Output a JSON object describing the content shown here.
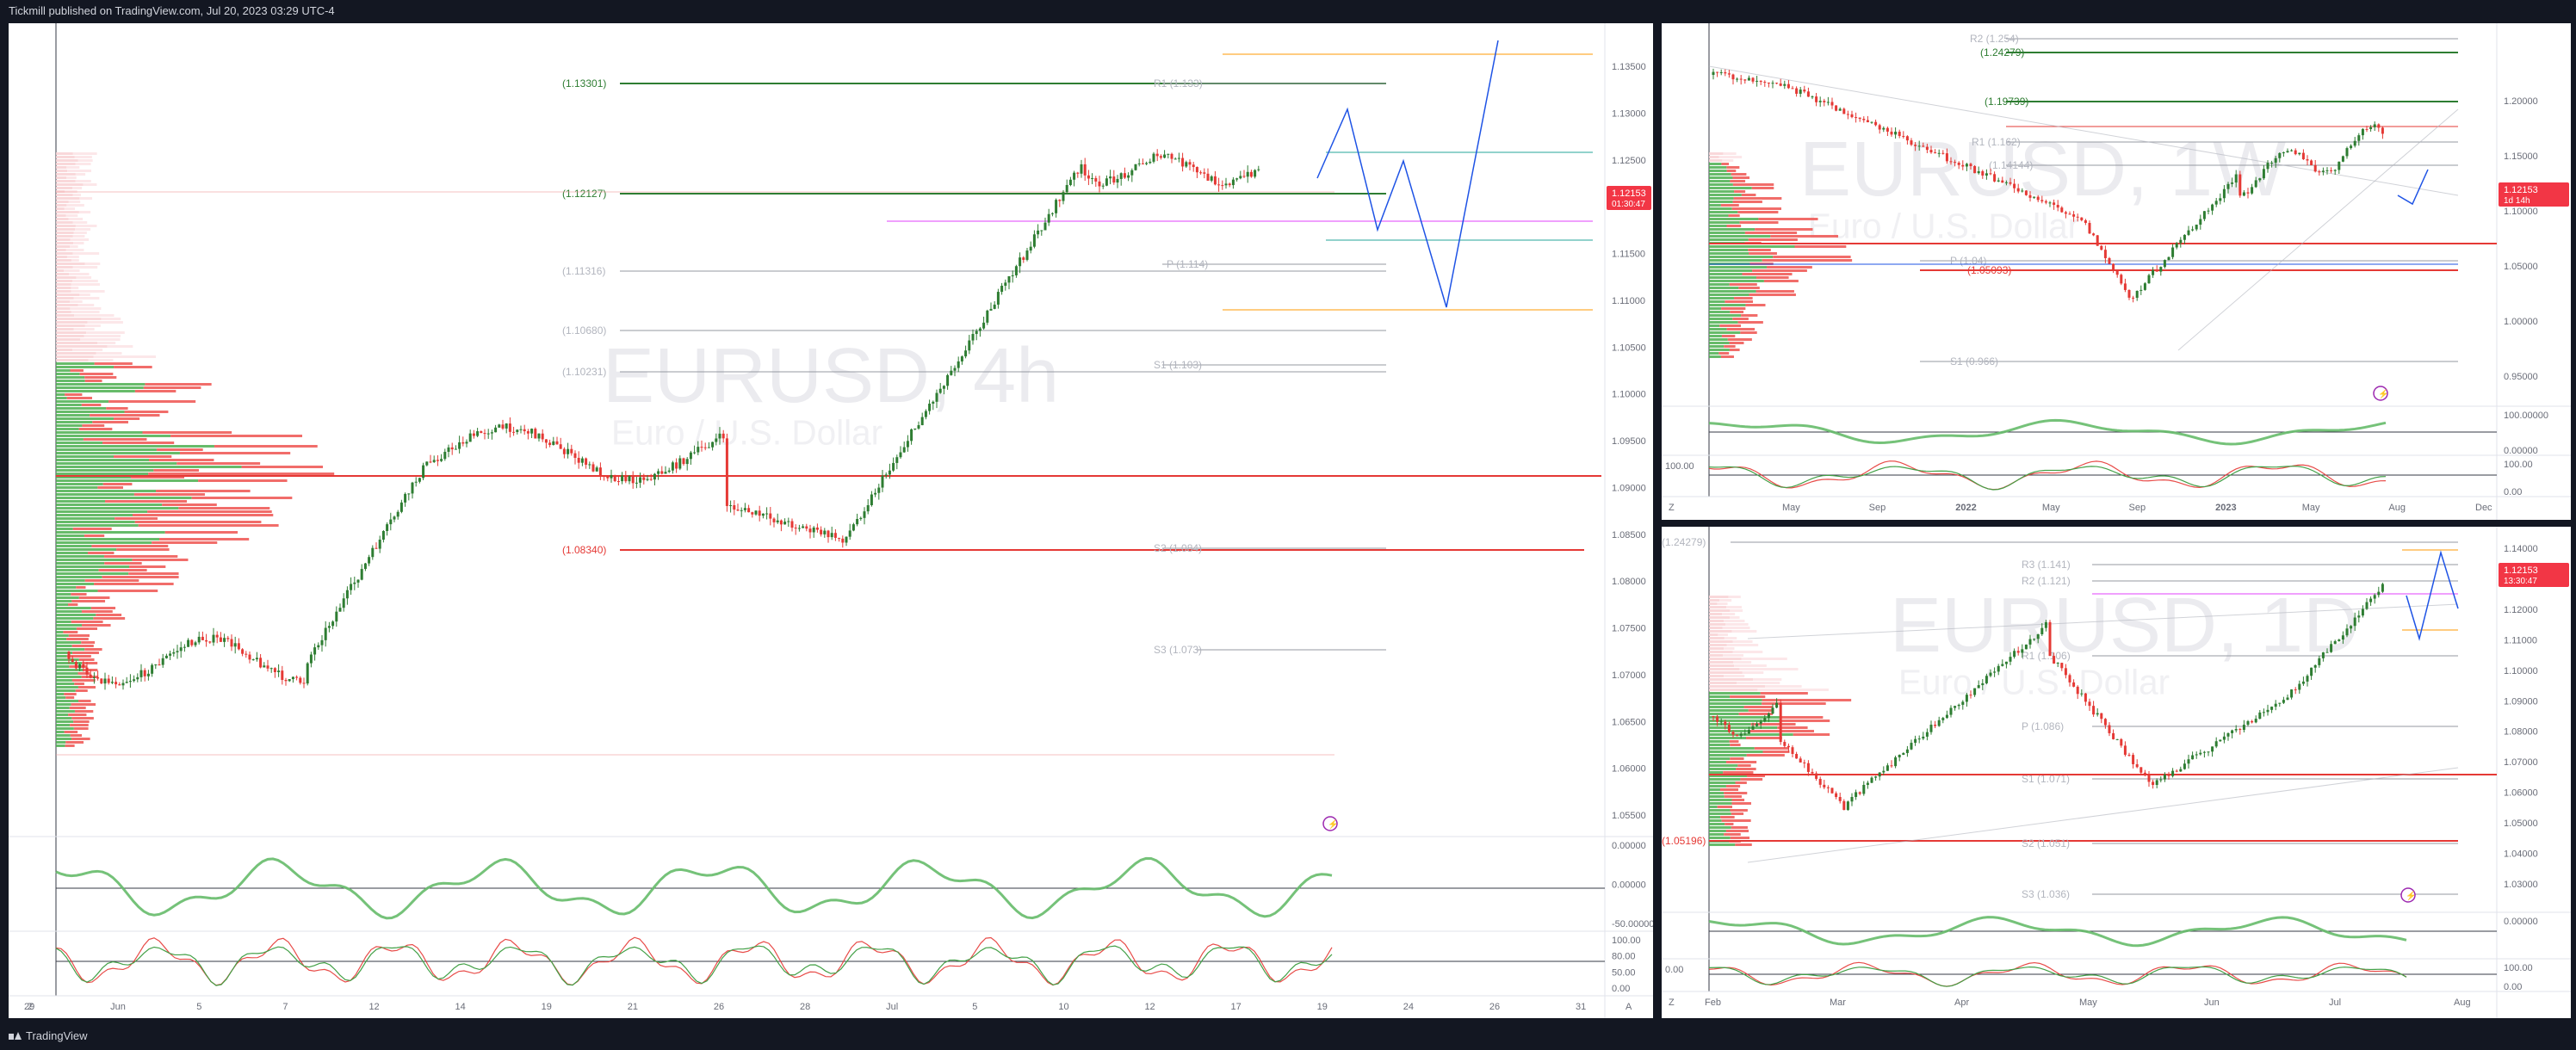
{
  "header": {
    "publisher_line": "Tickmill published on TradingView.com, Jul 20, 2023 03:29 UTC-4"
  },
  "footer": {
    "brand": "TradingView"
  },
  "colors": {
    "up": "#089981",
    "down": "#f23645",
    "bg": "#ffffff",
    "frame": "#131722",
    "level_green": "#2e7d32",
    "level_red": "#e53935",
    "projection": "#1e53e5",
    "orange": "#ff9800",
    "magenta": "#e040fb"
  },
  "panels": {
    "left": {
      "symbol": "EURUSD, 4h",
      "subtitle": "Euro / U.S. Dollar",
      "price_axis": [
        "1.13500",
        "1.13000",
        "1.12500",
        "1.12000",
        "1.11500",
        "1.11000",
        "1.10500",
        "1.10000",
        "1.09500",
        "1.09000",
        "1.08500",
        "1.08000",
        "1.07500",
        "1.07000",
        "1.06500",
        "1.06000",
        "1.05500"
      ],
      "last_price": "1.12153",
      "countdown": "01:30:47",
      "levels": [
        {
          "label": "(1.13301)",
          "kind": "green"
        },
        {
          "label": "R1 (1.133)",
          "kind": "gray"
        },
        {
          "label": "(1.12127)",
          "kind": "green"
        },
        {
          "label": "(1.11316)",
          "kind": "gray"
        },
        {
          "label": "P (1.114)",
          "kind": "gray"
        },
        {
          "label": "(1.10680)",
          "kind": "gray"
        },
        {
          "label": "(1.10231)",
          "kind": "gray"
        },
        {
          "label": "S1 (1.103)",
          "kind": "gray"
        },
        {
          "label": "(1.08340)",
          "kind": "red"
        },
        {
          "label": "S2 (1.084)",
          "kind": "gray"
        },
        {
          "label": "S3 (1.073)",
          "kind": "gray"
        }
      ],
      "time_axis": [
        "29",
        "Jun",
        "5",
        "7",
        "12",
        "14",
        "19",
        "21",
        "26",
        "28",
        "Jul",
        "5",
        "10",
        "12",
        "17",
        "19",
        "24",
        "26",
        "31"
      ],
      "osc_axis_1": [
        "0.00000",
        "0.00000",
        "-50.00000"
      ],
      "osc_axis_2": [
        "100.00",
        "80.00",
        "50.00",
        "0.00"
      ],
      "auto_btn": "A",
      "zoom_btn": "Z"
    },
    "top_right": {
      "symbol": "EURUSD, 1W",
      "subtitle": "Euro / U.S. Dollar",
      "price_axis": [
        "1.20000",
        "1.15000",
        "1.10000",
        "1.05000",
        "1.00000",
        "0.95000"
      ],
      "last_price": "1.12153",
      "countdown": "1d 14h",
      "levels": [
        {
          "label": "R2 (1.254)",
          "kind": "gray"
        },
        {
          "label": "(1.24279)",
          "kind": "green"
        },
        {
          "label": "(1.19739)",
          "kind": "green"
        },
        {
          "label": "R1 (1.162)",
          "kind": "gray"
        },
        {
          "label": "(1.14144)",
          "kind": "gray"
        },
        {
          "label": "P (1.04)",
          "kind": "gray"
        },
        {
          "label": "(1.05093)",
          "kind": "red"
        },
        {
          "label": "S1 (0.966)",
          "kind": "gray"
        }
      ],
      "time_axis": [
        "May",
        "Sep",
        "2022",
        "May",
        "Sep",
        "2023",
        "May",
        "Aug",
        "Dec"
      ],
      "osc_axis_1": [
        "100.00000",
        "0.00000"
      ],
      "osc_axis_2": [
        "100.00",
        "0.00"
      ],
      "osc_left_label": "100.00",
      "zoom_btn": "Z"
    },
    "bottom_right": {
      "symbol": "EURUSD, 1D",
      "subtitle": "Euro / U.S. Dollar",
      "price_axis": [
        "1.14000",
        "1.13000",
        "1.12000",
        "1.11000",
        "1.10000",
        "1.09000",
        "1.08000",
        "1.07000",
        "1.06000",
        "1.05000",
        "1.04000",
        "1.03000"
      ],
      "last_price": "1.12153",
      "countdown": "13:30:47",
      "levels": [
        {
          "label": "(1.24279)",
          "kind": "gray"
        },
        {
          "label": "R3 (1.141)",
          "kind": "gray"
        },
        {
          "label": "R2 (1.121)",
          "kind": "gray"
        },
        {
          "label": "R1 (1.106)",
          "kind": "gray"
        },
        {
          "label": "P (1.086)",
          "kind": "gray"
        },
        {
          "label": "S1 (1.071)",
          "kind": "gray"
        },
        {
          "label": "(1.05196)",
          "kind": "red"
        },
        {
          "label": "S2 (1.051)",
          "kind": "gray"
        },
        {
          "label": "S3 (1.036)",
          "kind": "gray"
        }
      ],
      "time_axis": [
        "Feb",
        "Mar",
        "Apr",
        "May",
        "Jun",
        "Jul",
        "Aug"
      ],
      "osc_axis_1": [
        "0.00000"
      ],
      "osc_axis_2": [
        "100.00",
        "0.00"
      ],
      "osc_left_label": "0.00",
      "zoom_btn": "Z"
    }
  }
}
